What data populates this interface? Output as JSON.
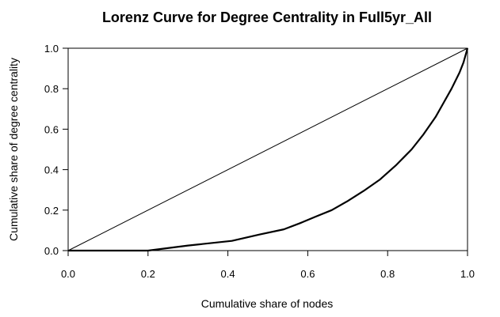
{
  "chart_data": {
    "type": "line",
    "title": "Lorenz Curve for Degree Centrality in Full5yr_All",
    "xlabel": "Cumulative share of nodes",
    "ylabel": "Cumulative share of degree centrality",
    "xlim": [
      0,
      1
    ],
    "ylim": [
      0,
      1
    ],
    "xticks": [
      "0.0",
      "0.2",
      "0.4",
      "0.6",
      "0.8",
      "1.0"
    ],
    "yticks": [
      "0.0",
      "0.2",
      "0.4",
      "0.6",
      "0.8",
      "1.0"
    ],
    "grid": false,
    "series": [
      {
        "style": "thin",
        "x": [
          0,
          1
        ],
        "y": [
          0,
          1
        ]
      },
      {
        "style": "thick",
        "x": [
          0,
          0.2,
          0.3,
          0.41,
          0.48,
          0.54,
          0.58,
          0.62,
          0.66,
          0.7,
          0.74,
          0.78,
          0.82,
          0.86,
          0.89,
          0.92,
          0.94,
          0.96,
          0.98,
          0.99,
          1.0
        ],
        "y": [
          0,
          0,
          0.025,
          0.048,
          0.08,
          0.105,
          0.135,
          0.168,
          0.2,
          0.245,
          0.295,
          0.35,
          0.42,
          0.5,
          0.575,
          0.66,
          0.73,
          0.8,
          0.88,
          0.93,
          1.0
        ]
      }
    ]
  }
}
